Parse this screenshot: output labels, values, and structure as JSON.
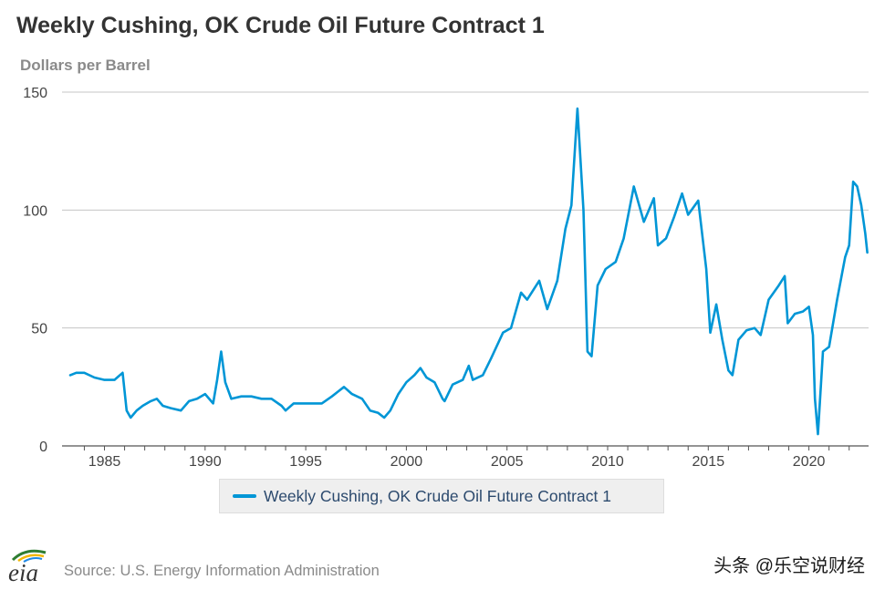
{
  "page": {
    "title": "Weekly Cushing, OK Crude Oil Future Contract 1",
    "units_label": "Dollars per Barrel",
    "source": "Source: U.S. Energy Information Administration",
    "logo_text": "eia",
    "watermark": "头条 @乐空说财经"
  },
  "chart_data": {
    "type": "line",
    "title": "Weekly Cushing, OK Crude Oil Future Contract 1",
    "ylabel": "Dollars per Barrel",
    "xlabel": "",
    "xlim": [
      1983.3,
      2022.9
    ],
    "ylim": [
      0,
      150
    ],
    "x_ticks": [
      "1985",
      "1990",
      "1995",
      "2000",
      "2005",
      "2010",
      "2015",
      "2020"
    ],
    "y_ticks": [
      "0",
      "50",
      "100",
      "150"
    ],
    "grid": "horizontal",
    "legend_position": "bottom",
    "color": "#0096d6",
    "series": [
      {
        "name": "Weekly Cushing, OK Crude Oil Future Contract 1",
        "x": [
          1983.3,
          1983.6,
          1984.0,
          1984.5,
          1985.0,
          1985.5,
          1985.9,
          1986.1,
          1986.3,
          1986.6,
          1986.9,
          1987.3,
          1987.6,
          1987.9,
          1988.3,
          1988.8,
          1989.2,
          1989.6,
          1990.0,
          1990.4,
          1990.6,
          1990.8,
          1991.0,
          1991.3,
          1991.8,
          1992.3,
          1992.8,
          1993.3,
          1993.8,
          1994.0,
          1994.4,
          1994.8,
          1995.3,
          1995.8,
          1996.3,
          1996.6,
          1996.9,
          1997.3,
          1997.8,
          1998.2,
          1998.6,
          1998.9,
          1999.2,
          1999.6,
          2000.0,
          2000.4,
          2000.7,
          2001.0,
          2001.4,
          2001.8,
          2001.9,
          2002.3,
          2002.8,
          2003.1,
          2003.3,
          2003.8,
          2004.2,
          2004.8,
          2005.2,
          2005.7,
          2006.0,
          2006.6,
          2007.0,
          2007.5,
          2007.9,
          2008.2,
          2008.5,
          2008.8,
          2009.0,
          2009.2,
          2009.5,
          2009.9,
          2010.4,
          2010.8,
          2011.3,
          2011.8,
          2012.3,
          2012.5,
          2012.9,
          2013.3,
          2013.7,
          2014.0,
          2014.5,
          2014.9,
          2015.1,
          2015.4,
          2015.7,
          2016.0,
          2016.2,
          2016.5,
          2016.9,
          2017.3,
          2017.6,
          2018.0,
          2018.5,
          2018.8,
          2018.95,
          2019.3,
          2019.7,
          2020.0,
          2020.2,
          2020.3,
          2020.45,
          2020.7,
          2021.0,
          2021.4,
          2021.8,
          2022.0,
          2022.2,
          2022.4,
          2022.6,
          2022.8,
          2022.9
        ],
        "values": [
          30,
          31,
          31,
          29,
          28,
          28,
          31,
          15,
          12,
          15,
          17,
          19,
          20,
          17,
          16,
          15,
          19,
          20,
          22,
          18,
          28,
          40,
          27,
          20,
          21,
          21,
          20,
          20,
          17,
          15,
          18,
          18,
          18,
          18,
          21,
          23,
          25,
          22,
          20,
          15,
          14,
          12,
          15,
          22,
          27,
          30,
          33,
          29,
          27,
          20,
          19,
          26,
          28,
          34,
          28,
          30,
          37,
          48,
          50,
          65,
          62,
          70,
          58,
          70,
          92,
          102,
          143,
          100,
          40,
          38,
          68,
          75,
          78,
          88,
          110,
          95,
          105,
          85,
          88,
          97,
          107,
          98,
          104,
          75,
          48,
          60,
          45,
          32,
          30,
          45,
          49,
          50,
          47,
          62,
          68,
          72,
          52,
          56,
          57,
          59,
          47,
          20,
          5,
          40,
          42,
          62,
          80,
          85,
          112,
          110,
          102,
          90,
          82
        ]
      }
    ]
  }
}
